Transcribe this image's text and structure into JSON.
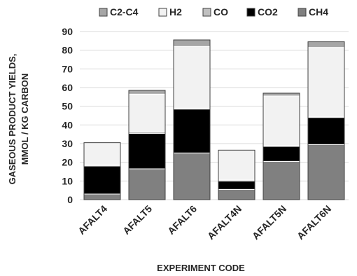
{
  "chart_data": {
    "type": "bar",
    "stacked": true,
    "categories": [
      "AFALT4",
      "AFALT5",
      "AFALT6",
      "AFALT4N",
      "AFALT5N",
      "AFALT6N"
    ],
    "series": [
      {
        "name": "CH4",
        "color": "#808080",
        "values": [
          3,
          16.5,
          25,
          5.5,
          20.5,
          29.5
        ]
      },
      {
        "name": "CO2",
        "color": "#000000",
        "values": [
          15,
          19,
          23.5,
          4.5,
          8,
          14.5
        ]
      },
      {
        "name": "CO",
        "color": "#c0c0c0",
        "values": [
          0.5,
          1,
          0.5,
          0.5,
          0.5,
          0.5
        ]
      },
      {
        "name": "H2",
        "color": "#f2f2f2",
        "values": [
          12,
          20,
          33,
          16,
          26.5,
          37
        ]
      },
      {
        "name": "C2-C4",
        "color": "#a6a6a6",
        "values": [
          0,
          2,
          3.5,
          0,
          1.5,
          3
        ]
      }
    ],
    "legend_order": [
      "C2-C4",
      "H2",
      "CO",
      "CO2",
      "CH4"
    ],
    "legend_position": "top",
    "xlabel": "EXPERIMENT CODE",
    "ylabel_lines": [
      "GASEOUS PRODUCT YIELDS,",
      "MMOL / KG CARBON"
    ],
    "ylim": [
      0,
      90
    ],
    "yticks": [
      0,
      10,
      20,
      30,
      40,
      50,
      60,
      70,
      80,
      90
    ],
    "grid": true
  }
}
